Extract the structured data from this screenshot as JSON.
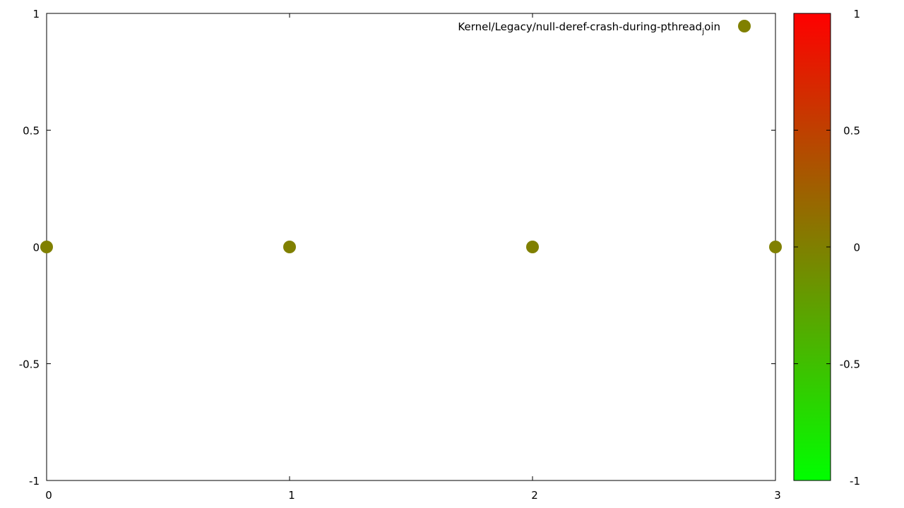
{
  "chart_data": {
    "type": "scatter",
    "title": "",
    "xlabel": "",
    "ylabel": "",
    "xlim": [
      0,
      3
    ],
    "ylim": [
      -1,
      1
    ],
    "xticks": [
      0,
      1,
      2,
      3
    ],
    "xtick_labels": [
      "0",
      "1",
      "2",
      "3"
    ],
    "yticks": [
      -1,
      -0.5,
      0,
      0.5,
      1
    ],
    "ytick_labels": [
      "-1",
      "-0.5",
      "0",
      "0.5",
      "1"
    ],
    "grid": false,
    "legend_position": "top-right",
    "legend": {
      "label_main": "Kernel/Legacy/null-deref-crash-during-pthread",
      "label_subscript": "j",
      "label_rest": "oin"
    },
    "series": [
      {
        "name": "Kernel/Legacy/null-deref-crash-during-pthread_join",
        "color": "#808000",
        "x": [
          0,
          1,
          2,
          3
        ],
        "y": [
          0,
          0,
          0,
          0
        ]
      }
    ],
    "colorbar": {
      "range": [
        -1,
        1
      ],
      "ticks": [
        -1,
        -0.5,
        0,
        0.5,
        1
      ],
      "tick_labels": [
        "-1",
        "-0.5",
        "0",
        "0.5",
        "1"
      ],
      "color_low": "#00ff00",
      "color_high": "#ff0000"
    }
  }
}
